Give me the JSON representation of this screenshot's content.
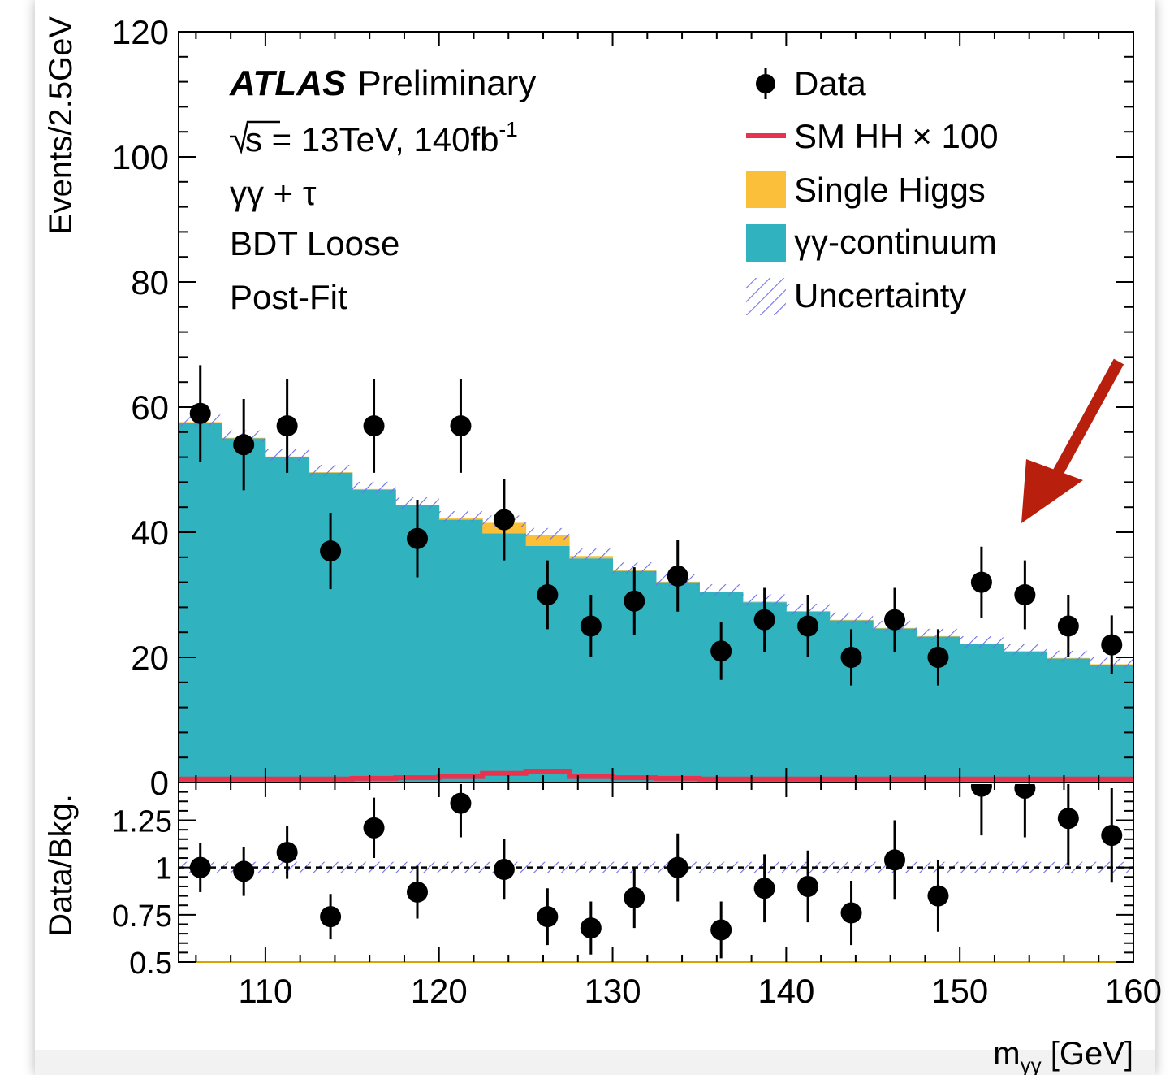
{
  "chart_data": {
    "type": "bar",
    "experiment": "ATLAS",
    "experiment_suffix": "Preliminary",
    "sqrt_s_text": "s = 13TeV, 140fb",
    "sqrt_s_sup": "-1",
    "channel": "γγ + τ",
    "category": "BDT Loose",
    "fit_status": "Post-Fit",
    "xlabel_main": "m",
    "xlabel_sub": "γγ",
    "xlabel_unit": " [GeV]",
    "xlim": [
      105,
      160
    ],
    "x_ticks": [
      "110",
      "120",
      "130",
      "140",
      "150",
      "160"
    ],
    "upper": {
      "ylabel": "Events/2.5GeV",
      "ylim": [
        0,
        120
      ],
      "y_ticks": [
        "0",
        "20",
        "40",
        "60",
        "80",
        "100",
        "120"
      ],
      "bin_edges": [
        105,
        107.5,
        110,
        112.5,
        115,
        117.5,
        120,
        122.5,
        125,
        127.5,
        130,
        132.5,
        135,
        137.5,
        140,
        142.5,
        145,
        147.5,
        150,
        152.5,
        155,
        157.5,
        160
      ],
      "gg_continuum": [
        57.5,
        55.0,
        52.0,
        49.5,
        46.8,
        44.3,
        42.0,
        39.8,
        37.8,
        35.8,
        33.8,
        32.0,
        30.4,
        28.8,
        27.3,
        25.9,
        24.6,
        23.3,
        22.1,
        20.9,
        19.8,
        18.8
      ],
      "single_higgs_total": [
        57.6,
        55.1,
        52.1,
        49.6,
        46.9,
        44.4,
        42.2,
        41.5,
        39.5,
        36.2,
        34.0,
        32.1,
        30.5,
        28.9,
        27.4,
        26.0,
        24.7,
        23.4,
        22.2,
        21.0,
        19.9,
        18.9
      ],
      "sm_hh_x100": [
        0.3,
        0.3,
        0.3,
        0.3,
        0.4,
        0.5,
        0.7,
        1.2,
        1.5,
        0.7,
        0.5,
        0.4,
        0.3,
        0.3,
        0.3,
        0.3,
        0.3,
        0.3,
        0.3,
        0.3,
        0.3,
        0.3
      ],
      "data_x": [
        106.25,
        108.75,
        111.25,
        113.75,
        116.25,
        118.75,
        121.25,
        123.75,
        126.25,
        128.75,
        131.25,
        133.75,
        136.25,
        138.75,
        141.25,
        143.75,
        146.25,
        148.75,
        151.25,
        153.75,
        156.25,
        158.75
      ],
      "data_y": [
        59,
        54,
        57,
        37,
        57,
        39,
        57,
        42,
        30,
        25,
        29,
        33,
        21,
        26,
        25,
        20,
        26,
        20,
        32,
        30,
        25,
        22
      ],
      "data_err": [
        7.7,
        7.3,
        7.5,
        6.1,
        7.5,
        6.2,
        7.5,
        6.5,
        5.5,
        5.0,
        5.4,
        5.7,
        4.6,
        5.1,
        5.0,
        4.5,
        5.1,
        4.5,
        5.7,
        5.5,
        5.0,
        4.7
      ]
    },
    "lower": {
      "ylabel": "Data/Bkg.",
      "ylim": [
        0.5,
        1.45
      ],
      "y_ticks": [
        "0.5",
        "0.75",
        "1",
        "1.25"
      ],
      "ratio": [
        1.0,
        0.98,
        1.08,
        0.74,
        1.21,
        0.87,
        1.34,
        0.99,
        0.74,
        0.68,
        0.84,
        1.0,
        0.67,
        0.89,
        0.9,
        0.76,
        1.04,
        0.85,
        1.43,
        1.42,
        1.26,
        1.17
      ],
      "ratio_err": [
        0.13,
        0.13,
        0.14,
        0.12,
        0.16,
        0.14,
        0.18,
        0.16,
        0.15,
        0.14,
        0.16,
        0.18,
        0.15,
        0.18,
        0.19,
        0.17,
        0.21,
        0.19,
        0.26,
        0.26,
        0.25,
        0.25
      ]
    },
    "legend": [
      {
        "label": "Data",
        "kind": "marker",
        "color": "#000000"
      },
      {
        "label": "SM HH",
        "suffix": "× 100",
        "kind": "line",
        "color": "#e8334f"
      },
      {
        "label": "Single Higgs",
        "kind": "fill",
        "color": "#fbbf3a"
      },
      {
        "label": "γγ-continuum",
        "kind": "fill",
        "color": "#31b2bf"
      },
      {
        "label": "Uncertainty",
        "kind": "hatch",
        "color": "#6f6fe6"
      }
    ],
    "legend_position": "top-right",
    "annotation": {
      "kind": "arrow",
      "color": "#b81f0d",
      "points_to": "data near 153.75 GeV"
    }
  }
}
